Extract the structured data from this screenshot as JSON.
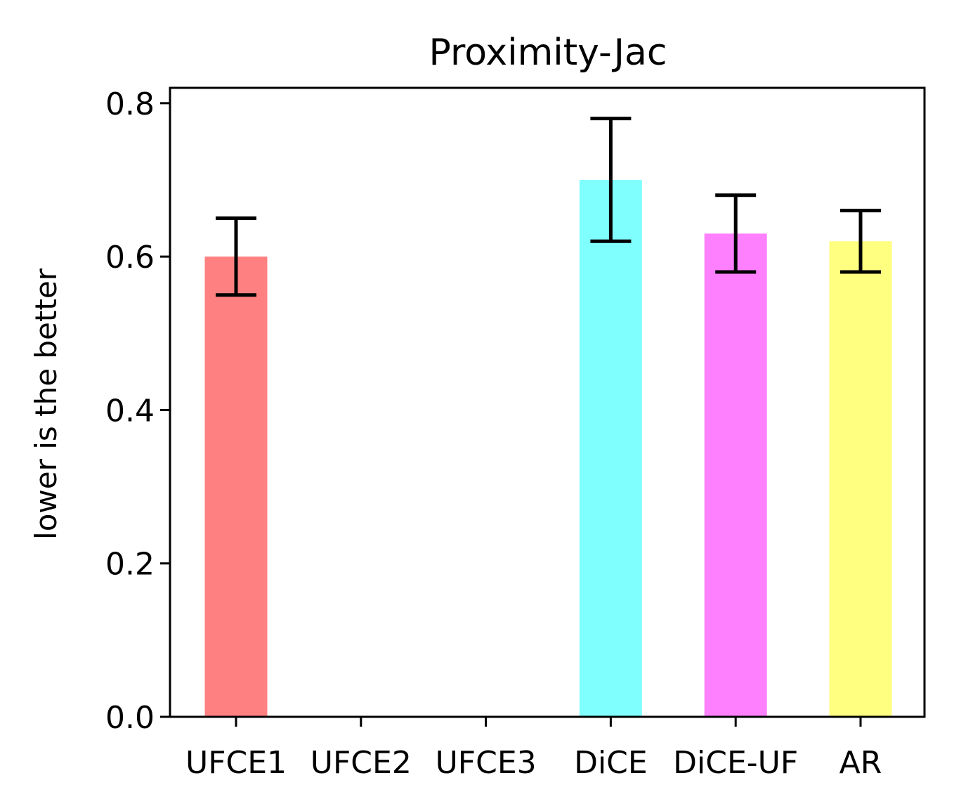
{
  "chart_data": {
    "type": "bar",
    "title": "Proximity-Jac",
    "xlabel": "",
    "ylabel": "lower is the better",
    "categories": [
      "UFCE1",
      "UFCE2",
      "UFCE3",
      "DiCE",
      "DiCE-UF",
      "AR"
    ],
    "values": [
      0.6,
      0.0,
      0.0,
      0.7,
      0.63,
      0.62
    ],
    "error_low": [
      0.55,
      null,
      null,
      0.62,
      0.58,
      0.58
    ],
    "error_high": [
      0.65,
      null,
      null,
      0.78,
      0.68,
      0.66
    ],
    "colors": [
      "#ff8080",
      "#8080ff",
      "#80ff80",
      "#80ffff",
      "#ff80ff",
      "#ffff80"
    ],
    "ylim": [
      0,
      0.82
    ],
    "yticks": [
      "0.0",
      "0.2",
      "0.4",
      "0.6",
      "0.8"
    ],
    "grid": false,
    "legend": "none"
  }
}
